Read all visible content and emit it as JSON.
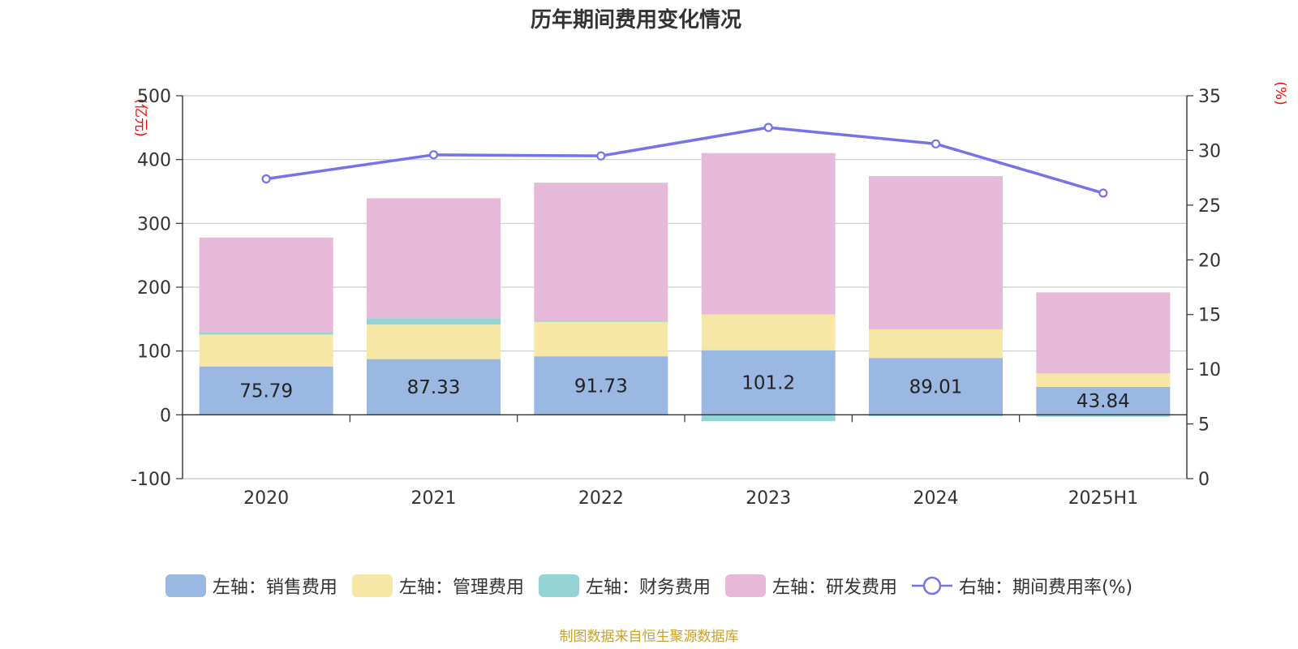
{
  "chart_data": {
    "type": "bar",
    "title": "历年期间费用变化情况",
    "categories": [
      "2020",
      "2021",
      "2022",
      "2023",
      "2024",
      "2025H1"
    ],
    "y_left": {
      "label": "(亿元)",
      "ylim": [
        -100,
        500
      ],
      "ticks": [
        500,
        400,
        300,
        200,
        100,
        0,
        -100
      ]
    },
    "y_right": {
      "label": "(%)",
      "ylim": [
        0,
        35
      ],
      "ticks": [
        35,
        30,
        25,
        20,
        15,
        10,
        5,
        0
      ]
    },
    "stacked": true,
    "series": [
      {
        "name": "左轴：销售费用",
        "axis": "left",
        "color": "#9bb8e2",
        "values": [
          75.79,
          87.33,
          91.73,
          101.2,
          89.01,
          43.84
        ],
        "labels": [
          "75.79",
          "87.33",
          "91.73",
          "101.2",
          "89.01",
          "43.84"
        ]
      },
      {
        "name": "左轴：管理费用",
        "axis": "left",
        "color": "#f7e7a6",
        "values": [
          50,
          54,
          54,
          56,
          45,
          21
        ]
      },
      {
        "name": "左轴：财务费用",
        "axis": "left",
        "color": "#95d4d4",
        "values": [
          4,
          10,
          2,
          -10,
          -2,
          -3
        ]
      },
      {
        "name": "左轴：研发费用",
        "axis": "left",
        "color": "#e7b9d9",
        "values": [
          148,
          188,
          216,
          253,
          240,
          127
        ]
      },
      {
        "name": "右轴：期间费用率(%)",
        "axis": "right",
        "type": "line",
        "color": "#7474e8",
        "values": [
          27.4,
          29.6,
          29.5,
          32.1,
          30.6,
          26.1
        ]
      }
    ],
    "legend_position": "bottom",
    "grid": true
  },
  "source_note": "制图数据来自恒生聚源数据库"
}
